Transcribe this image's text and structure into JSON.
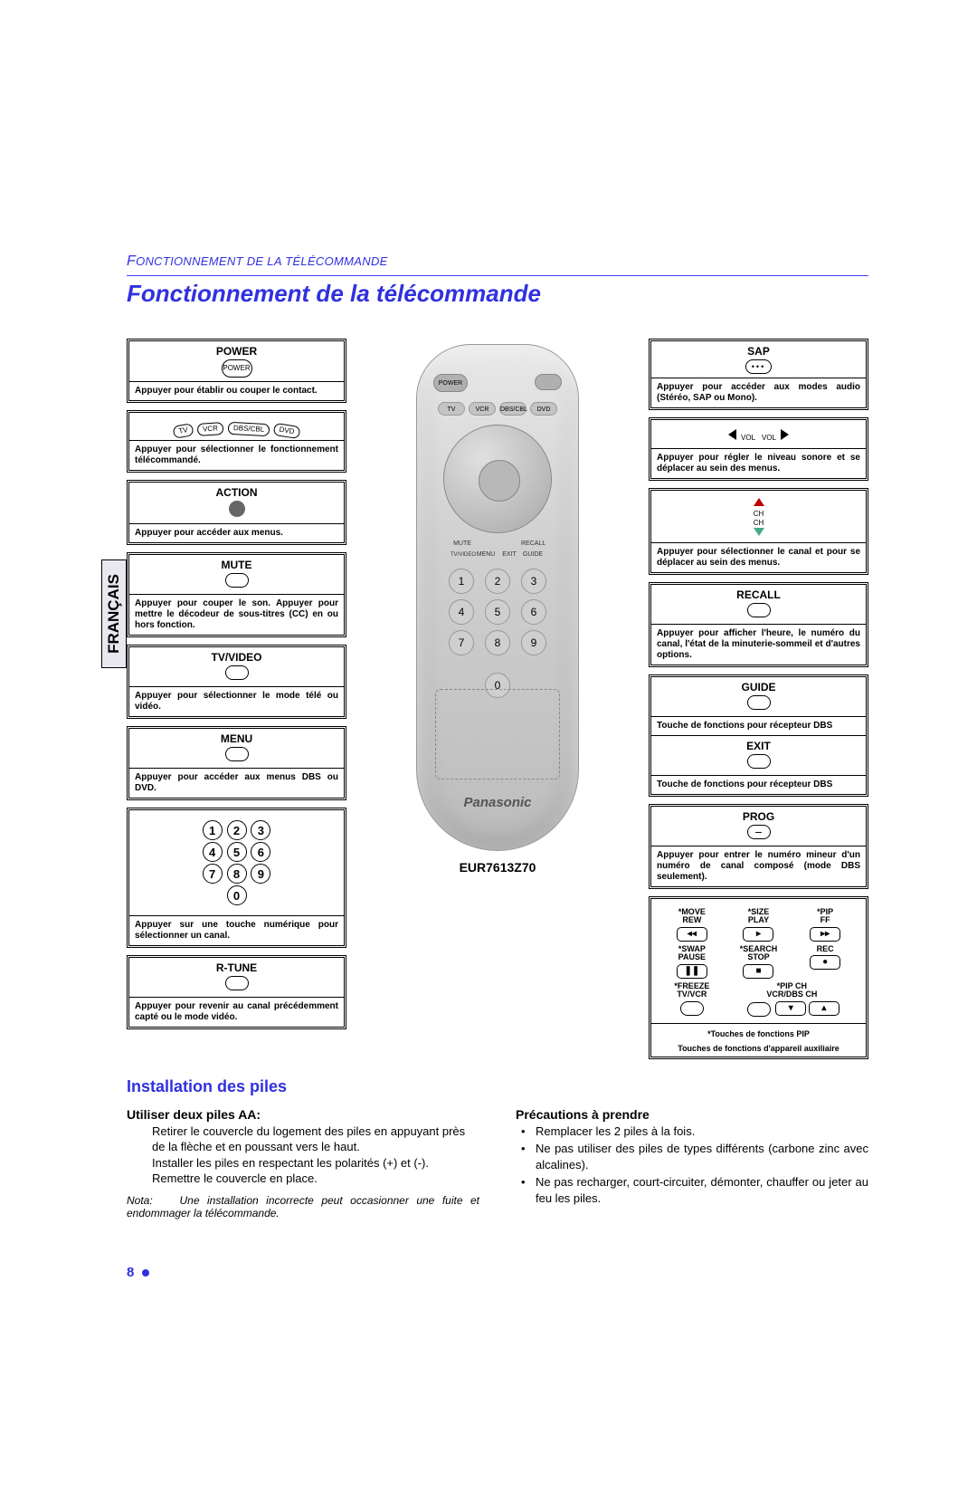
{
  "runningHead": "FONCTIONNEMENT DE LA TÉLÉCOMMANDE",
  "title": "Fonctionnement de la télécommande",
  "langTab": "FRANÇAIS",
  "model": "EUR7613Z70",
  "brand": "Panasonic",
  "pageNumber": "8",
  "left": {
    "power": {
      "label": "POWER",
      "btn": "POWER",
      "desc": "Appuyer pour établir ou couper le contact."
    },
    "mode": {
      "chips": [
        "TV",
        "VCR",
        "DBS/CBL",
        "DVD"
      ],
      "desc": "Appuyer pour sélectionner le fonctionnement télécommandé."
    },
    "action": {
      "label": "ACTION",
      "desc": "Appuyer pour accéder aux menus."
    },
    "mute": {
      "label": "MUTE",
      "desc": "Appuyer pour couper le son. Appuyer pour mettre le décodeur de sous-titres (CC) en ou hors fonction."
    },
    "tvvideo": {
      "label": "TV/VIDEO",
      "desc": "Appuyer pour sélectionner le mode télé ou vidéo."
    },
    "menu": {
      "label": "MENU",
      "desc": "Appuyer pour accéder aux menus DBS ou DVD."
    },
    "numpad": {
      "nums": [
        "1",
        "2",
        "3",
        "4",
        "5",
        "6",
        "7",
        "8",
        "9",
        "0"
      ],
      "desc": "Appuyer sur une touche numérique pour sélectionner un canal."
    },
    "rtune": {
      "label": "R-TUNE",
      "desc": "Appuyer pour revenir au canal précédemment capté ou le mode vidéo."
    }
  },
  "right": {
    "sap": {
      "label": "SAP",
      "desc": "Appuyer pour accéder aux modes audio (Stéréo, SAP ou Mono)."
    },
    "vol": {
      "txt": "VOL",
      "desc": "Appuyer pour régler le niveau sonore et se déplacer au sein des menus."
    },
    "ch": {
      "txt": "CH",
      "desc": "Appuyer pour sélectionner le canal et pour se déplacer au sein des menus."
    },
    "recall": {
      "label": "RECALL",
      "desc": "Appuyer pour afficher l'heure, le numéro du canal, l'état de la minuterie-sommeil et d'autres options."
    },
    "guide": {
      "label": "GUIDE",
      "desc": "Touche de fonctions pour récepteur DBS"
    },
    "exit": {
      "label": "EXIT",
      "desc": "Touche de fonctions pour récepteur DBS"
    },
    "prog": {
      "label": "PROG",
      "desc": "Appuyer pour entrer le numéro mineur d'un numéro de canal composé (mode DBS seulement)."
    },
    "fn": {
      "cells": [
        {
          "t": "*MOVE\nREW",
          "g": "◂◂"
        },
        {
          "t": "*SIZE\nPLAY",
          "g": "▸"
        },
        {
          "t": "*PIP\nFF",
          "g": "▸▸"
        },
        {
          "t": "*SWAP\nPAUSE",
          "g": "❚❚"
        },
        {
          "t": "*SEARCH\nSTOP",
          "g": "■"
        },
        {
          "t": "REC",
          "g": "●"
        },
        {
          "t": "*FREEZE\nTV/VCR",
          "g": ""
        },
        {
          "t": "*PIP CH\nVCR/DBS CH",
          "g": "▾ ▴",
          "span": 2
        }
      ],
      "foot1": "*Touches de fonctions PIP",
      "foot2": "Touches de fonctions d'appareil auxiliaire"
    }
  },
  "install": {
    "heading": "Installation des piles",
    "sub": "Utiliser deux piles AA:",
    "lines": [
      "Retirer le couvercle du logement des piles en appuyant près de la flèche et en poussant vers le haut.",
      "Installer les piles en respectant les polarités (+) et (-).",
      "Remettre le couvercle en place."
    ],
    "notaLabel": "Nota:",
    "nota": "Une installation incorrecte peut occasionner une fuite et endommager la télécommande."
  },
  "precautions": {
    "heading": "Précautions à prendre",
    "items": [
      "Remplacer les 2 piles à la fois.",
      "Ne pas utiliser des piles de types différents (carbone zinc avec alcalines).",
      "Ne pas recharger, court-circuiter, démonter, chauffer ou jeter au feu les piles."
    ]
  },
  "remoteLabels": {
    "tinyRow": [
      "MUTE",
      "",
      "",
      "RECALL"
    ],
    "tinyRow2": [
      "TV/VIDEO",
      "MENU",
      "EXIT",
      "GUIDE"
    ],
    "modechips": [
      "TV",
      "VCR",
      "DBS/CBL",
      "DVD"
    ],
    "nums": [
      "1",
      "2",
      "3",
      "4",
      "5",
      "6",
      "7",
      "8",
      "9",
      "",
      "0",
      ""
    ],
    "extra": [
      "R-TUNE",
      "PROG"
    ]
  },
  "colors": {
    "accent": "#3030e0",
    "redTri": "#c00000",
    "greenTri": "#44aa88"
  }
}
